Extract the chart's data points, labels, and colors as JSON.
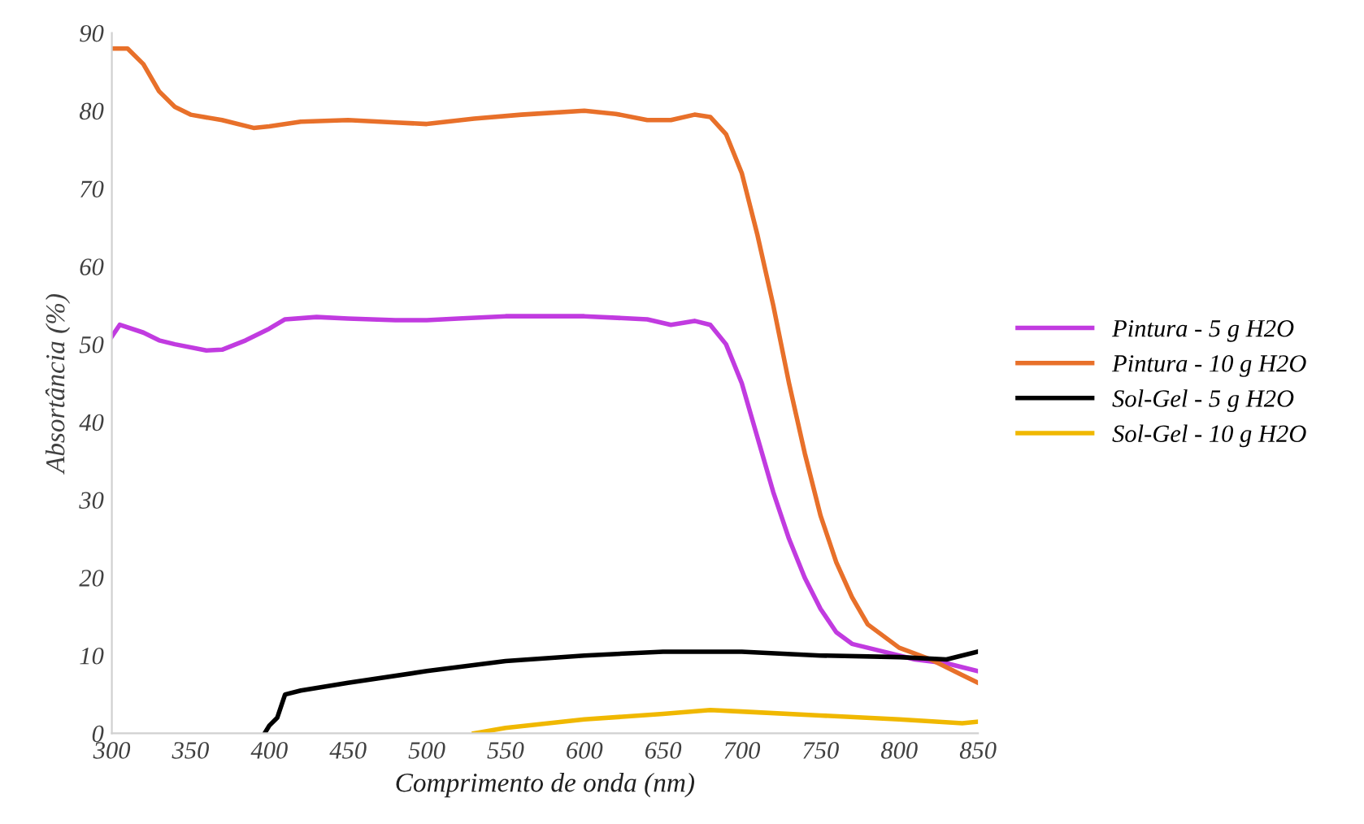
{
  "chart_data": {
    "type": "line",
    "xlabel": "Comprimento de onda (nm)",
    "ylabel": "Absortância (%)",
    "xlim": [
      300,
      850
    ],
    "xticks": [
      300,
      350,
      400,
      450,
      500,
      550,
      600,
      650,
      700,
      750,
      800,
      850
    ],
    "ylim": [
      0,
      90
    ],
    "yticks": [
      0,
      10,
      20,
      30,
      40,
      50,
      60,
      70,
      80,
      90
    ],
    "grid": false,
    "legend": "right",
    "marker": "none",
    "line_style": "solid",
    "series": [
      {
        "name": "Pintura - 5 g H2O",
        "color": "#c13be0",
        "x": [
          300,
          305,
          320,
          330,
          340,
          360,
          370,
          385,
          400,
          410,
          430,
          450,
          480,
          500,
          520,
          550,
          600,
          640,
          655,
          670,
          680,
          690,
          700,
          710,
          720,
          730,
          740,
          750,
          760,
          770,
          790,
          810,
          830,
          850
        ],
        "values": [
          51,
          52.5,
          51.5,
          50.5,
          50,
          49.2,
          49.3,
          50.5,
          52,
          53.2,
          53.5,
          53.3,
          53.1,
          53.1,
          53.3,
          53.6,
          53.6,
          53.2,
          52.5,
          53,
          52.5,
          50,
          45,
          38,
          31,
          25,
          20,
          16,
          13,
          11.5,
          10.5,
          9.5,
          9,
          8
        ]
      },
      {
        "name": "Pintura - 10 g H2O",
        "color": "#e8702a",
        "x": [
          300,
          310,
          320,
          330,
          340,
          350,
          370,
          390,
          400,
          420,
          450,
          480,
          500,
          530,
          560,
          600,
          620,
          640,
          655,
          670,
          680,
          690,
          700,
          710,
          720,
          730,
          740,
          750,
          760,
          770,
          780,
          800,
          820,
          840,
          850
        ],
        "values": [
          88,
          88,
          86,
          82.5,
          80.5,
          79.5,
          78.8,
          77.8,
          78,
          78.6,
          78.8,
          78.5,
          78.3,
          79,
          79.5,
          80,
          79.6,
          78.8,
          78.8,
          79.5,
          79.2,
          77,
          72,
          64,
          55,
          45,
          36,
          28,
          22,
          17.5,
          14,
          11,
          9.5,
          7.5,
          6.5
        ]
      },
      {
        "name": "Sol-Gel - 5 g H2O",
        "color": "#000000",
        "x": [
          397,
          400,
          405,
          410,
          420,
          450,
          500,
          550,
          600,
          650,
          700,
          750,
          800,
          830,
          850
        ],
        "values": [
          0,
          1,
          2,
          5,
          5.5,
          6.5,
          8,
          9.3,
          10,
          10.5,
          10.5,
          10,
          9.8,
          9.5,
          10.5
        ]
      },
      {
        "name": "Sol-Gel - 10 g H2O",
        "color": "#f0b800",
        "x": [
          530,
          550,
          600,
          650,
          680,
          700,
          750,
          800,
          840,
          850
        ],
        "values": [
          0,
          0.7,
          1.8,
          2.5,
          3,
          2.8,
          2.3,
          1.8,
          1.3,
          1.5
        ]
      }
    ]
  }
}
